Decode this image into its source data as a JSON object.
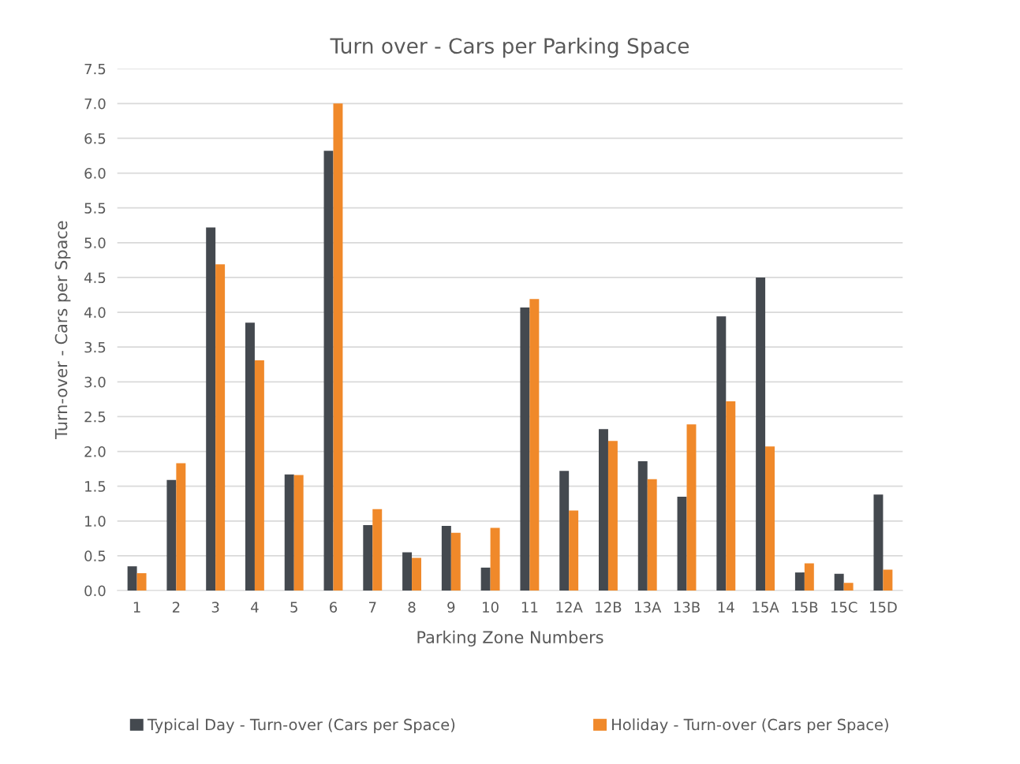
{
  "chart_data": {
    "type": "bar",
    "title": "Turn over - Cars per Parking Space",
    "xlabel": "Parking Zone Numbers",
    "ylabel": "Turn-over - Cars per Space",
    "categories": [
      "1",
      "2",
      "3",
      "4",
      "5",
      "6",
      "7",
      "8",
      "9",
      "10",
      "11",
      "12A",
      "12B",
      "13A",
      "13B",
      "14",
      "15A",
      "15B",
      "15C",
      "15D"
    ],
    "series": [
      {
        "name": "Typical Day - Turn-over (Cars per Space)",
        "color": "#44494f",
        "values": [
          0.35,
          1.59,
          5.22,
          3.85,
          1.67,
          6.32,
          0.94,
          0.55,
          0.93,
          0.33,
          4.07,
          1.72,
          2.32,
          1.86,
          1.35,
          3.94,
          4.5,
          0.26,
          0.24,
          1.38
        ]
      },
      {
        "name": "Holiday - Turn-over (Cars per Space)",
        "color": "#f0892a",
        "values": [
          0.25,
          1.83,
          4.69,
          3.31,
          1.66,
          7.0,
          1.17,
          0.47,
          0.83,
          0.9,
          4.19,
          1.15,
          2.15,
          1.6,
          2.39,
          2.72,
          2.07,
          0.39,
          0.11,
          0.3
        ]
      }
    ],
    "ylim": [
      0,
      7.5
    ],
    "yticks": [
      {
        "value": 0,
        "label": "0.0"
      },
      0.5,
      {
        "value": 1,
        "label": "1.0"
      },
      1.5,
      {
        "value": 2,
        "label": "2.0"
      },
      2.5,
      {
        "value": 3,
        "label": "3.0"
      },
      3.5,
      {
        "value": 4,
        "label": "4.0"
      },
      4.5,
      {
        "value": 5,
        "label": "5.0"
      },
      5.5,
      {
        "value": 6,
        "label": "6.0"
      },
      6.5,
      {
        "value": 7,
        "label": "7.0"
      },
      7.5
    ],
    "grid": "y",
    "legend": "bottom"
  }
}
